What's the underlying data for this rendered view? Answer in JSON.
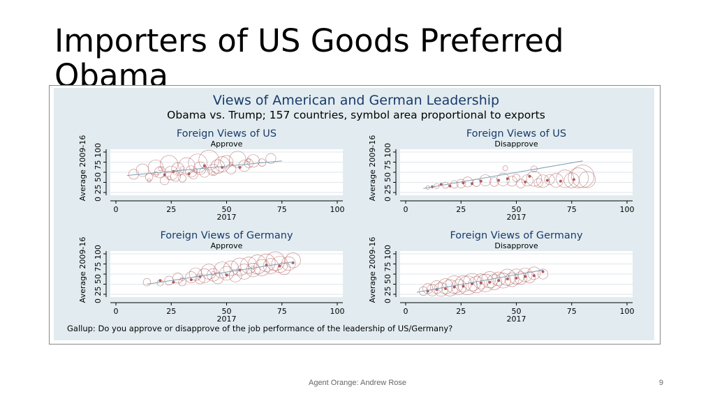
{
  "slide": {
    "title": "Importers of US Goods Preferred Obama",
    "footer_text": "Agent Orange: Andrew Rose",
    "page_number": "9"
  },
  "figure": {
    "title": "Views of American and German Leadership",
    "subtitle": "Obama vs. Trump; 157 countries, symbol area proportional to exports",
    "note": "Gallup: Do you approve or disapprove of the job performance of the leadership of US/Germany?"
  },
  "colors": {
    "background": "#e2ecf0",
    "plot_area": "#ffffff",
    "marker": "#b05a5a",
    "fit_line": "#7f9fb5",
    "title": "#1a3a6b"
  },
  "chart_data": [
    {
      "type": "scatter",
      "title": "Foreign Views of US",
      "subtitle": "Approve",
      "xlabel": "2017",
      "ylabel": "Average 2009-16",
      "xlim": [
        0,
        100
      ],
      "ylim": [
        0,
        100
      ],
      "xticks": [
        "0",
        "25",
        "50",
        "75",
        "100"
      ],
      "yticks": [
        "0",
        "25",
        "50",
        "75",
        "100"
      ],
      "grid": true,
      "fit_line": [
        [
          5,
          42
        ],
        [
          75,
          78
        ]
      ],
      "points": [
        [
          8,
          45,
          8
        ],
        [
          12,
          55,
          10
        ],
        [
          15,
          38,
          6
        ],
        [
          18,
          62,
          12
        ],
        [
          20,
          50,
          9
        ],
        [
          22,
          30,
          7
        ],
        [
          24,
          70,
          14
        ],
        [
          25,
          48,
          11
        ],
        [
          27,
          40,
          8
        ],
        [
          28,
          58,
          10
        ],
        [
          30,
          35,
          6
        ],
        [
          32,
          66,
          13
        ],
        [
          34,
          52,
          9
        ],
        [
          35,
          44,
          7
        ],
        [
          37,
          72,
          15
        ],
        [
          38,
          60,
          10
        ],
        [
          40,
          50,
          8
        ],
        [
          42,
          80,
          16
        ],
        [
          44,
          56,
          9
        ],
        [
          46,
          64,
          11
        ],
        [
          48,
          70,
          12
        ],
        [
          50,
          76,
          10
        ],
        [
          52,
          58,
          8
        ],
        [
          55,
          82,
          13
        ],
        [
          58,
          66,
          9
        ],
        [
          60,
          72,
          7
        ],
        [
          62,
          78,
          10
        ],
        [
          66,
          74,
          6
        ],
        [
          70,
          84,
          8
        ],
        [
          18,
          45,
          4
        ],
        [
          20,
          58,
          3
        ],
        [
          24,
          36,
          3
        ],
        [
          26,
          52,
          2
        ],
        [
          30,
          60,
          3
        ],
        [
          33,
          46,
          2
        ],
        [
          36,
          54,
          3
        ],
        [
          40,
          66,
          2
        ],
        [
          44,
          48,
          3
        ],
        [
          48,
          62,
          2
        ],
        [
          52,
          70,
          3
        ],
        [
          56,
          62,
          2
        ],
        [
          60,
          80,
          3
        ],
        [
          15,
          30,
          3
        ],
        [
          22,
          44,
          2
        ],
        [
          28,
          50,
          3
        ]
      ]
    },
    {
      "type": "scatter",
      "title": "Foreign Views of US",
      "subtitle": "Disapprove",
      "xlabel": "2017",
      "ylabel": "Average 2009-16",
      "xlim": [
        0,
        100
      ],
      "ylim": [
        0,
        100
      ],
      "xticks": [
        "0",
        "25",
        "50",
        "75",
        "100"
      ],
      "yticks": [
        "0",
        "25",
        "50",
        "75",
        "100"
      ],
      "grid": true,
      "fit_line": [
        [
          8,
          10
        ],
        [
          80,
          78
        ]
      ],
      "points": [
        [
          10,
          12,
          3
        ],
        [
          14,
          16,
          4
        ],
        [
          18,
          18,
          5
        ],
        [
          22,
          20,
          6
        ],
        [
          25,
          22,
          7
        ],
        [
          28,
          26,
          8
        ],
        [
          32,
          24,
          6
        ],
        [
          36,
          30,
          9
        ],
        [
          40,
          26,
          7
        ],
        [
          44,
          32,
          10
        ],
        [
          48,
          28,
          8
        ],
        [
          52,
          22,
          7
        ],
        [
          55,
          30,
          9
        ],
        [
          58,
          34,
          12
        ],
        [
          62,
          28,
          10
        ],
        [
          65,
          32,
          8
        ],
        [
          68,
          30,
          11
        ],
        [
          72,
          34,
          14
        ],
        [
          75,
          30,
          12
        ],
        [
          78,
          36,
          16
        ],
        [
          80,
          40,
          18
        ],
        [
          82,
          32,
          13
        ],
        [
          60,
          24,
          7
        ],
        [
          50,
          36,
          6
        ],
        [
          45,
          60,
          4
        ],
        [
          58,
          58,
          5
        ],
        [
          12,
          14,
          2
        ],
        [
          16,
          20,
          2
        ],
        [
          20,
          16,
          2
        ],
        [
          26,
          24,
          2
        ],
        [
          30,
          22,
          2
        ],
        [
          34,
          28,
          2
        ],
        [
          42,
          30,
          2
        ],
        [
          46,
          34,
          2
        ],
        [
          54,
          26,
          2
        ],
        [
          64,
          30,
          2
        ],
        [
          70,
          28,
          2
        ],
        [
          76,
          32,
          2
        ],
        [
          56,
          40,
          2
        ]
      ]
    },
    {
      "type": "scatter",
      "title": "Foreign Views of Germany",
      "subtitle": "Approve",
      "xlabel": "2017",
      "ylabel": "Average 2009-16",
      "xlim": [
        0,
        100
      ],
      "ylim": [
        0,
        100
      ],
      "xticks": [
        "0",
        "25",
        "50",
        "75",
        "100"
      ],
      "yticks": [
        "0",
        "25",
        "50",
        "75",
        "100"
      ],
      "grid": true,
      "fit_line": [
        [
          14,
          25
        ],
        [
          80,
          80
        ]
      ],
      "points": [
        [
          14,
          30,
          6
        ],
        [
          20,
          28,
          5
        ],
        [
          24,
          34,
          7
        ],
        [
          28,
          40,
          8
        ],
        [
          30,
          30,
          6
        ],
        [
          34,
          42,
          9
        ],
        [
          36,
          50,
          10
        ],
        [
          38,
          38,
          8
        ],
        [
          40,
          46,
          11
        ],
        [
          42,
          56,
          12
        ],
        [
          44,
          48,
          10
        ],
        [
          46,
          40,
          9
        ],
        [
          48,
          60,
          13
        ],
        [
          50,
          52,
          11
        ],
        [
          52,
          64,
          12
        ],
        [
          54,
          46,
          10
        ],
        [
          56,
          68,
          14
        ],
        [
          58,
          56,
          12
        ],
        [
          60,
          72,
          13
        ],
        [
          62,
          60,
          11
        ],
        [
          64,
          74,
          15
        ],
        [
          66,
          66,
          13
        ],
        [
          68,
          78,
          14
        ],
        [
          70,
          70,
          12
        ],
        [
          72,
          82,
          15
        ],
        [
          74,
          74,
          13
        ],
        [
          76,
          64,
          10
        ],
        [
          78,
          76,
          11
        ],
        [
          80,
          84,
          12
        ],
        [
          20,
          34,
          2
        ],
        [
          26,
          30,
          2
        ],
        [
          30,
          38,
          3
        ],
        [
          34,
          36,
          2
        ],
        [
          38,
          44,
          2
        ],
        [
          44,
          52,
          3
        ],
        [
          50,
          48,
          2
        ],
        [
          56,
          60,
          2
        ],
        [
          62,
          66,
          3
        ],
        [
          68,
          72,
          2
        ],
        [
          74,
          70,
          2
        ],
        [
          80,
          78,
          2
        ]
      ]
    },
    {
      "type": "scatter",
      "title": "Foreign Views of Germany",
      "subtitle": "Disapprove",
      "xlabel": "2017",
      "ylabel": "Average 2009-16",
      "xlim": [
        0,
        100
      ],
      "ylim": [
        0,
        100
      ],
      "xticks": [
        "0",
        "25",
        "50",
        "75",
        "100"
      ],
      "yticks": [
        "0",
        "25",
        "50",
        "75",
        "100"
      ],
      "grid": true,
      "fit_line": [
        [
          5,
          5
        ],
        [
          62,
          60
        ]
      ],
      "points": [
        [
          8,
          8,
          7
        ],
        [
          10,
          14,
          8
        ],
        [
          12,
          10,
          9
        ],
        [
          14,
          18,
          10
        ],
        [
          16,
          12,
          11
        ],
        [
          18,
          20,
          12
        ],
        [
          20,
          16,
          13
        ],
        [
          22,
          24,
          14
        ],
        [
          24,
          18,
          12
        ],
        [
          26,
          26,
          13
        ],
        [
          28,
          22,
          15
        ],
        [
          30,
          30,
          14
        ],
        [
          32,
          24,
          13
        ],
        [
          34,
          32,
          12
        ],
        [
          36,
          28,
          14
        ],
        [
          38,
          36,
          13
        ],
        [
          40,
          30,
          12
        ],
        [
          42,
          38,
          11
        ],
        [
          44,
          34,
          12
        ],
        [
          46,
          42,
          13
        ],
        [
          48,
          36,
          11
        ],
        [
          50,
          44,
          12
        ],
        [
          52,
          40,
          10
        ],
        [
          54,
          48,
          11
        ],
        [
          56,
          42,
          9
        ],
        [
          58,
          52,
          10
        ],
        [
          62,
          50,
          8
        ],
        [
          10,
          8,
          2
        ],
        [
          14,
          12,
          2
        ],
        [
          18,
          14,
          2
        ],
        [
          22,
          18,
          2
        ],
        [
          26,
          20,
          2
        ],
        [
          30,
          26,
          2
        ],
        [
          34,
          28,
          2
        ],
        [
          38,
          30,
          2
        ],
        [
          42,
          34,
          2
        ],
        [
          46,
          38,
          2
        ],
        [
          50,
          40,
          2
        ],
        [
          54,
          44,
          2
        ],
        [
          58,
          46,
          2
        ],
        [
          62,
          56,
          2
        ]
      ]
    }
  ]
}
